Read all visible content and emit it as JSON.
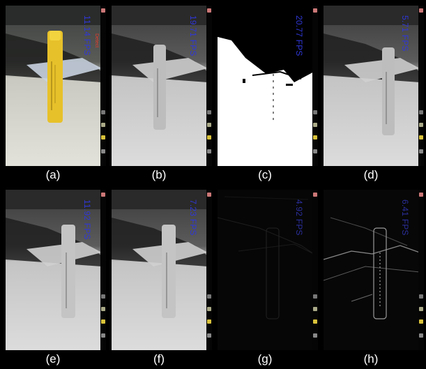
{
  "panels": [
    {
      "label": "(a)",
      "fps": "11.14 FPS",
      "mode": "color"
    },
    {
      "label": "(b)",
      "fps": "19.71 FPS",
      "mode": "gray"
    },
    {
      "label": "(c)",
      "fps": "20.77 FPS",
      "mode": "binary"
    },
    {
      "label": "(d)",
      "fps": "5.71 FPS",
      "mode": "gray"
    },
    {
      "label": "(e)",
      "fps": "11.92 FPS",
      "mode": "gray"
    },
    {
      "label": "(f)",
      "fps": "7.23 FPS",
      "mode": "gray"
    },
    {
      "label": "(g)",
      "fps": "4.92 FPS",
      "mode": "edge-dark"
    },
    {
      "label": "(h)",
      "fps": "6.41 FPS",
      "mode": "edge"
    }
  ],
  "colors": {
    "fps_text": "#2f37d6",
    "background": "#000000",
    "caption_text": "#ffffff"
  }
}
